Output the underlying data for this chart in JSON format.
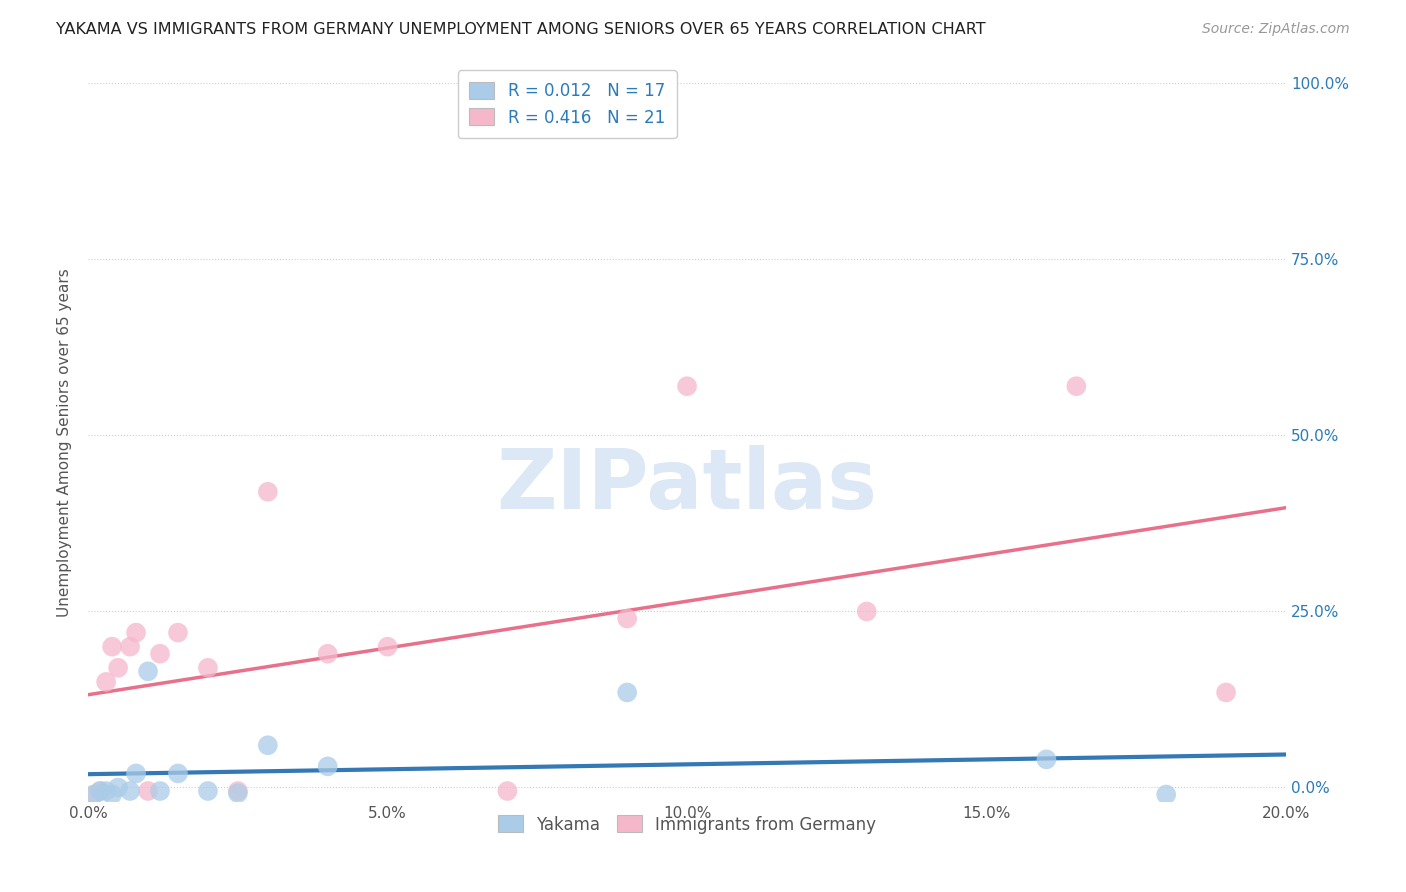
{
  "title": "YAKAMA VS IMMIGRANTS FROM GERMANY UNEMPLOYMENT AMONG SENIORS OVER 65 YEARS CORRELATION CHART",
  "source": "Source: ZipAtlas.com",
  "ylabel": "Unemployment Among Seniors over 65 years",
  "xlim": [
    0.0,
    0.2
  ],
  "ylim": [
    -0.02,
    1.0
  ],
  "xticks": [
    0.0,
    0.05,
    0.1,
    0.15,
    0.2
  ],
  "xtick_labels": [
    "0.0%",
    "5.0%",
    "10.0%",
    "15.0%",
    "20.0%"
  ],
  "yticks": [
    0.0,
    0.25,
    0.5,
    0.75,
    1.0
  ],
  "ytick_labels": [
    "0.0%",
    "25.0%",
    "50.0%",
    "75.0%",
    "100.0%"
  ],
  "yakama_color": "#aacce8",
  "germany_color": "#f5b8cb",
  "yakama_line_color": "#3478b5",
  "germany_line_color": "#e8708a",
  "R_yakama": 0.012,
  "N_yakama": 17,
  "R_germany": 0.416,
  "N_germany": 21,
  "legend_labels": [
    "Yakama",
    "Immigrants from Germany"
  ],
  "watermark": "ZIPatlas",
  "watermark_color": "#dce8f5",
  "background_color": "#ffffff",
  "grid_color": "#cccccc",
  "title_color": "#222222",
  "axis_label_color": "#555555",
  "tick_label_color_right": "#2b7bba",
  "legend_text_color": "#2b7bba",
  "yakama_x": [
    0.001,
    0.002,
    0.003,
    0.004,
    0.005,
    0.007,
    0.008,
    0.01,
    0.012,
    0.015,
    0.02,
    0.025,
    0.03,
    0.04,
    0.09,
    0.16,
    0.18
  ],
  "yakama_y": [
    -0.01,
    -0.005,
    -0.005,
    -0.01,
    0.0,
    -0.005,
    0.02,
    0.165,
    -0.005,
    0.02,
    -0.005,
    -0.008,
    0.06,
    0.03,
    0.135,
    0.04,
    -0.01
  ],
  "germany_x": [
    0.001,
    0.002,
    0.003,
    0.004,
    0.005,
    0.007,
    0.008,
    0.01,
    0.012,
    0.015,
    0.02,
    0.025,
    0.03,
    0.04,
    0.05,
    0.07,
    0.09,
    0.1,
    0.13,
    0.165,
    0.19
  ],
  "germany_y": [
    -0.01,
    -0.005,
    0.15,
    0.2,
    0.17,
    0.2,
    0.22,
    -0.005,
    0.19,
    0.22,
    0.17,
    -0.005,
    0.42,
    0.19,
    0.2,
    -0.005,
    0.24,
    0.57,
    0.25,
    0.57,
    0.135
  ]
}
